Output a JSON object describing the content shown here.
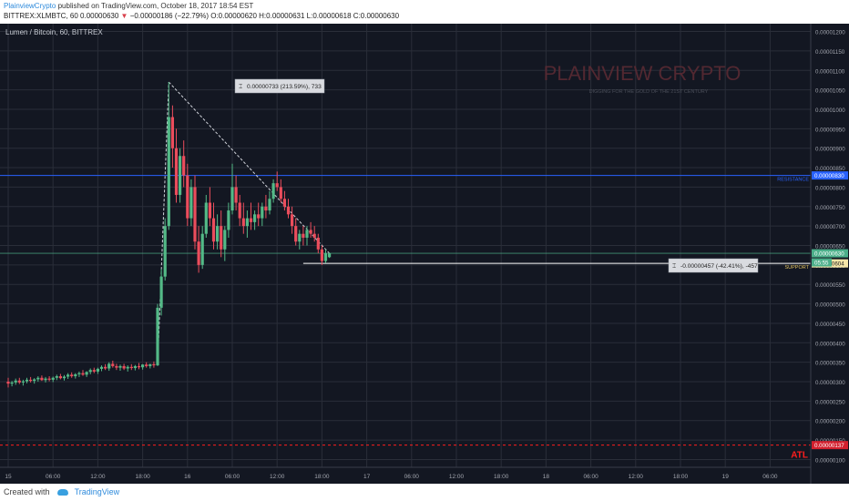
{
  "header": {
    "user": "PlainviewCrypto",
    "published": "published on TradingView.com, October 18, 2017 18:54 EST",
    "symbol_line": "BITTREX:XLMBTC, 60",
    "last": "0.00000630",
    "change": "−0.00000186 (−22.79%)",
    "ohlc": "O:0.00000620 H:0.00000631 L:0.00000618 C:0.00000630"
  },
  "footer": {
    "created_with": "Created with",
    "brand": "TradingView"
  },
  "chart_data": {
    "type": "candlestick",
    "title": "Lumen / Bitcoin, 60, BITTREX",
    "watermark": "PLAINVIEW CRYPTO",
    "watermark_sub": "DIGGING FOR THE GOLD OF THE 21ST CENTURY",
    "ylim": [
      8e-07,
      1.22e-05
    ],
    "yticks": [
      "0.00001200",
      "0.00001150",
      "0.00001100",
      "0.00001050",
      "0.00001000",
      "0.00000950",
      "0.00000900",
      "0.00000850",
      "0.00000800",
      "0.00000750",
      "0.00000700",
      "0.00000650",
      "0.00000600",
      "0.00000550",
      "0.00000500",
      "0.00000450",
      "0.00000400",
      "0.00000350",
      "0.00000300",
      "0.00000250",
      "0.00000200",
      "0.00000150",
      "0.00000100"
    ],
    "xlim": [
      0,
      216
    ],
    "xticks": [
      {
        "x": 0,
        "label": "15"
      },
      {
        "x": 12,
        "label": "06:00"
      },
      {
        "x": 24,
        "label": "12:00"
      },
      {
        "x": 36,
        "label": "18:00"
      },
      {
        "x": 48,
        "label": "16"
      },
      {
        "x": 60,
        "label": "06:00"
      },
      {
        "x": 72,
        "label": "12:00"
      },
      {
        "x": 84,
        "label": "18:00"
      },
      {
        "x": 96,
        "label": "17"
      },
      {
        "x": 108,
        "label": "06:00"
      },
      {
        "x": 120,
        "label": "12:00"
      },
      {
        "x": 132,
        "label": "18:00"
      },
      {
        "x": 144,
        "label": "18"
      },
      {
        "x": 156,
        "label": "06:00"
      },
      {
        "x": 168,
        "label": "12:00"
      },
      {
        "x": 180,
        "label": "18:00"
      },
      {
        "x": 192,
        "label": "19"
      },
      {
        "x": 204,
        "label": "06:00"
      },
      {
        "x": 216,
        "label": "12:00"
      },
      {
        "x": 228,
        "label": "18:00"
      }
    ],
    "candles": [
      [
        3e-06,
        3.1e-06,
        2.85e-06,
        2.95e-06
      ],
      [
        2.95e-06,
        3.02e-06,
        2.88e-06,
        2.98e-06
      ],
      [
        2.98e-06,
        3.08e-06,
        2.92e-06,
        3.03e-06
      ],
      [
        3.03e-06,
        3.1e-06,
        2.94e-06,
        2.98e-06
      ],
      [
        2.98e-06,
        3.05e-06,
        2.9e-06,
        3.01e-06
      ],
      [
        3.01e-06,
        3.1e-06,
        2.96e-06,
        3.05e-06
      ],
      [
        3.05e-06,
        3.12e-06,
        2.98e-06,
        3.02e-06
      ],
      [
        3.02e-06,
        3.09e-06,
        2.95e-06,
        3.06e-06
      ],
      [
        3.06e-06,
        3.14e-06,
        3e-06,
        3.1e-06
      ],
      [
        3.1e-06,
        3.16e-06,
        3.02e-06,
        3.04e-06
      ],
      [
        3.04e-06,
        3.12e-06,
        2.98e-06,
        3.08e-06
      ],
      [
        3.08e-06,
        3.14e-06,
        3.01e-06,
        3.05e-06
      ],
      [
        3.05e-06,
        3.13e-06,
        2.99e-06,
        3.1e-06
      ],
      [
        3.1e-06,
        3.18e-06,
        3.04e-06,
        3.14e-06
      ],
      [
        3.14e-06,
        3.2e-06,
        3.06e-06,
        3.09e-06
      ],
      [
        3.09e-06,
        3.17e-06,
        3.03e-06,
        3.13e-06
      ],
      [
        3.13e-06,
        3.22e-06,
        3.07e-06,
        3.18e-06
      ],
      [
        3.18e-06,
        3.24e-06,
        3.1e-06,
        3.14e-06
      ],
      [
        3.14e-06,
        3.22e-06,
        3.08e-06,
        3.19e-06
      ],
      [
        3.19e-06,
        3.26e-06,
        3.12e-06,
        3.22e-06
      ],
      [
        3.22e-06,
        3.3e-06,
        3.15e-06,
        3.18e-06
      ],
      [
        3.18e-06,
        3.27e-06,
        3.12e-06,
        3.25e-06
      ],
      [
        3.25e-06,
        3.34e-06,
        3.19e-06,
        3.3e-06
      ],
      [
        3.3e-06,
        3.36e-06,
        3.22e-06,
        3.26e-06
      ],
      [
        3.26e-06,
        3.36e-06,
        3.2e-06,
        3.33e-06
      ],
      [
        3.33e-06,
        3.42e-06,
        3.27e-06,
        3.38e-06
      ],
      [
        3.38e-06,
        3.45e-06,
        3.3e-06,
        3.34e-06
      ],
      [
        3.34e-06,
        3.5e-06,
        3.28e-06,
        3.46e-06
      ],
      [
        3.46e-06,
        3.54e-06,
        3.36e-06,
        3.4e-06
      ],
      [
        3.4e-06,
        3.46e-06,
        3.3e-06,
        3.36e-06
      ],
      [
        3.36e-06,
        3.44e-06,
        3.28e-06,
        3.4e-06
      ],
      [
        3.4e-06,
        3.46e-06,
        3.3e-06,
        3.34e-06
      ],
      [
        3.34e-06,
        3.42e-06,
        3.26e-06,
        3.38e-06
      ],
      [
        3.38e-06,
        3.45e-06,
        3.3e-06,
        3.35e-06
      ],
      [
        3.35e-06,
        3.43e-06,
        3.29e-06,
        3.4e-06
      ],
      [
        3.4e-06,
        3.48e-06,
        3.32e-06,
        3.37e-06
      ],
      [
        3.37e-06,
        3.45e-06,
        3.31e-06,
        3.44e-06
      ],
      [
        3.44e-06,
        3.5e-06,
        3.36e-06,
        3.4e-06
      ],
      [
        3.4e-06,
        3.46e-06,
        3.34e-06,
        3.45e-06
      ],
      [
        3.45e-06,
        3.52e-06,
        3.36e-06,
        3.42e-06
      ],
      [
        3.42e-06,
        5e-06,
        3.4e-06,
        4.9e-06
      ],
      [
        4.9e-06,
        5.9e-06,
        4.7e-06,
        5.7e-06
      ],
      [
        5.7e-06,
        7.2e-06,
        5.6e-06,
        7e-06
      ],
      [
        7e-06,
        1.07e-05,
        6.9e-06,
        9.8e-06
      ],
      [
        9.8e-06,
        1.01e-05,
        8.5e-06,
        9e-06
      ],
      [
        9e-06,
        9.5e-06,
        7.6e-06,
        7.8e-06
      ],
      [
        7.8e-06,
        9e-06,
        7.6e-06,
        8.8e-06
      ],
      [
        8.8e-06,
        9.2e-06,
        8e-06,
        8.3e-06
      ],
      [
        8.3e-06,
        8.6e-06,
        7e-06,
        7.2e-06
      ],
      [
        7.2e-06,
        8.2e-06,
        7e-06,
        8e-06
      ],
      [
        8e-06,
        8.3e-06,
        6.4e-06,
        6.6e-06
      ],
      [
        6.6e-06,
        7e-06,
        5.8e-06,
        6e-06
      ],
      [
        6e-06,
        7e-06,
        5.9e-06,
        6.8e-06
      ],
      [
        6.8e-06,
        7.8e-06,
        6.7e-06,
        7.6e-06
      ],
      [
        7.6e-06,
        8e-06,
        7e-06,
        7.2e-06
      ],
      [
        7.2e-06,
        7.6e-06,
        6.4e-06,
        6.6e-06
      ],
      [
        6.6e-06,
        7.3e-06,
        6.4e-06,
        7e-06
      ],
      [
        7e-06,
        7.4e-06,
        6.2e-06,
        6.4e-06
      ],
      [
        6.4e-06,
        7e-06,
        6.1e-06,
        6.9e-06
      ],
      [
        6.9e-06,
        7.6e-06,
        6.7e-06,
        7.4e-06
      ],
      [
        7.4e-06,
        8.6e-06,
        7.3e-06,
        8e-06
      ],
      [
        8e-06,
        8.3e-06,
        7.4e-06,
        7.6e-06
      ],
      [
        7.6e-06,
        7.8e-06,
        7e-06,
        7.2e-06
      ],
      [
        7.2e-06,
        7.6e-06,
        6.8e-06,
        7e-06
      ],
      [
        7e-06,
        7.4e-06,
        6.7e-06,
        7.2e-06
      ],
      [
        7.2e-06,
        7.6e-06,
        6.9e-06,
        7.1e-06
      ],
      [
        7.1e-06,
        7.4e-06,
        6.9e-06,
        7.3e-06
      ],
      [
        7.3e-06,
        7.6e-06,
        7e-06,
        7.2e-06
      ],
      [
        7.2e-06,
        7.6e-06,
        7e-06,
        7.5e-06
      ],
      [
        7.5e-06,
        7.8e-06,
        7.2e-06,
        7.4e-06
      ],
      [
        7.4e-06,
        7.9e-06,
        7.3e-06,
        7.7e-06
      ],
      [
        7.7e-06,
        8.2e-06,
        7.6e-06,
        8.1e-06
      ],
      [
        8.1e-06,
        8.4e-06,
        7.9e-06,
        8e-06
      ],
      [
        8e-06,
        8.2e-06,
        7.6e-06,
        7.7e-06
      ],
      [
        7.7e-06,
        7.9e-06,
        7.4e-06,
        7.5e-06
      ],
      [
        7.5e-06,
        7.7e-06,
        7.2e-06,
        7.3e-06
      ],
      [
        7.3e-06,
        7.5e-06,
        6.8e-06,
        7e-06
      ],
      [
        7e-06,
        7.2e-06,
        6.5e-06,
        6.6e-06
      ],
      [
        6.6e-06,
        6.9e-06,
        6.4e-06,
        6.8e-06
      ],
      [
        6.8e-06,
        7e-06,
        6.5e-06,
        6.7e-06
      ],
      [
        6.7e-06,
        7e-06,
        6.5e-06,
        6.9e-06
      ],
      [
        6.9e-06,
        7.1e-06,
        6.7e-06,
        6.8e-06
      ],
      [
        6.8e-06,
        7e-06,
        6.6e-06,
        6.7e-06
      ],
      [
        6.7e-06,
        6.8e-06,
        6.3e-06,
        6.4e-06
      ],
      [
        6.4e-06,
        6.5e-06,
        6e-06,
        6.1e-06
      ],
      [
        6.1e-06,
        6.4e-06,
        6.05e-06,
        6.3e-06
      ],
      [
        6.2e-06,
        6.31e-06,
        6.18e-06,
        6.3e-06
      ]
    ],
    "annotations": {
      "rise_label": "0.00000733 (213.59%), 733",
      "drop_label": "-0.00000457 (-42.41%), -457",
      "resistance_label": "RESISTANCE",
      "resistance_price": "0.00000830",
      "support_label": "SUPPORT",
      "support_price": "0.00000604",
      "current_price": "0.00000630",
      "countdown": "05:55",
      "atl_label": "ATL",
      "atl_price": "0.00000137",
      "level_price": "0.00000630"
    },
    "colors": {
      "up": "#53b987",
      "down": "#eb4d5c",
      "resistance": "#2962ff",
      "support": "#ffffff",
      "atl": "#ff1e1e",
      "background": "#131722",
      "grid": "#2a2e39"
    }
  }
}
